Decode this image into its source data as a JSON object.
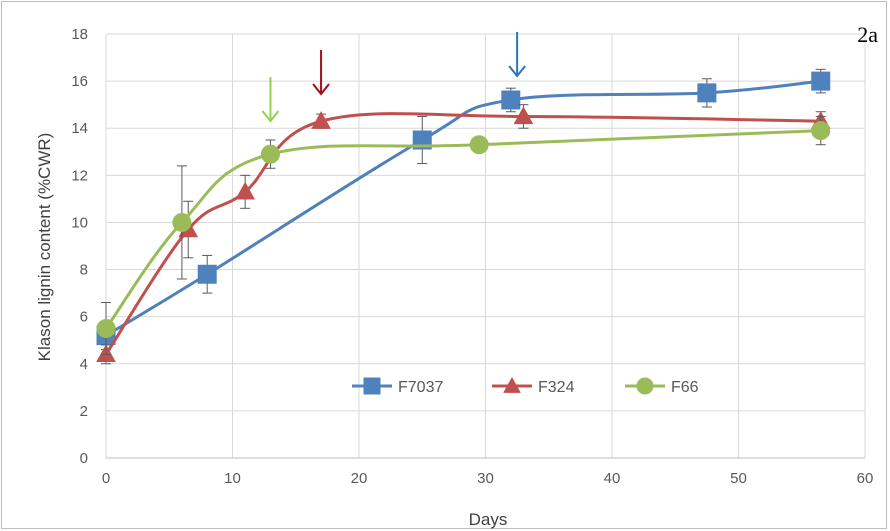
{
  "chart_data": {
    "type": "line",
    "panel_label": "2a",
    "xlabel": "Days",
    "ylabel": "Klason lignin content (%CWR)",
    "xlim": [
      0,
      60
    ],
    "ylim": [
      0,
      18
    ],
    "xticks": [
      "0",
      "10",
      "20",
      "30",
      "40",
      "50",
      "60"
    ],
    "yticks": [
      "0",
      "2",
      "4",
      "6",
      "8",
      "10",
      "12",
      "14",
      "16",
      "18"
    ],
    "grid": true,
    "legend_position": "bottom-center",
    "series": [
      {
        "name": "F7037",
        "color": "#4f81bd",
        "marker": "square",
        "x": [
          0,
          8,
          25,
          32,
          47.5,
          56.5
        ],
        "y": [
          5.2,
          7.8,
          13.5,
          15.2,
          15.5,
          16.0
        ],
        "err": [
          0.6,
          0.8,
          1.0,
          0.5,
          0.6,
          0.5
        ],
        "arrow_day": 32.5
      },
      {
        "name": "F324",
        "color": "#c0504d",
        "marker": "triangle",
        "x": [
          0,
          6.5,
          11,
          17,
          33,
          56.5
        ],
        "y": [
          4.4,
          9.7,
          11.3,
          14.3,
          14.5,
          14.3
        ],
        "err": [
          0.4,
          1.2,
          0.7,
          0.3,
          0.5,
          0.4
        ],
        "arrow_day": 17
      },
      {
        "name": "F66",
        "color": "#9bbb59",
        "marker": "circle",
        "x": [
          0,
          6,
          13,
          29.5,
          56.5
        ],
        "y": [
          5.5,
          10.0,
          12.9,
          13.3,
          13.9
        ],
        "err": [
          1.1,
          2.4,
          0.6,
          0.2,
          0.6
        ],
        "arrow_day": 13
      }
    ]
  }
}
